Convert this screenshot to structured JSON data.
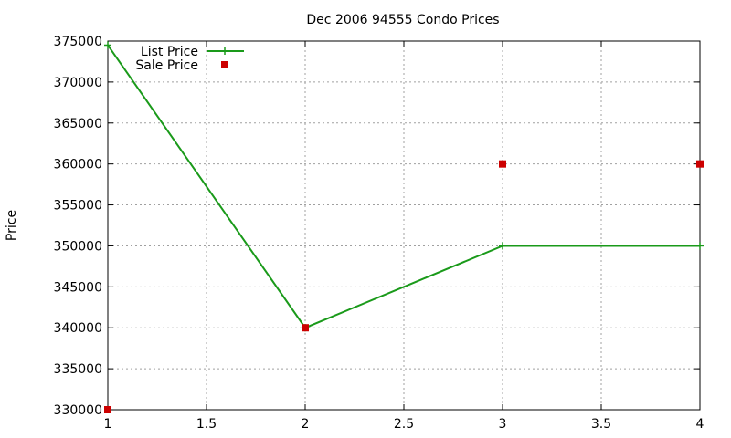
{
  "chart_data": {
    "type": "line",
    "title": "Dec 2006 94555 Condo Prices",
    "xlabel": "",
    "ylabel": "Price",
    "xlim": [
      1,
      4
    ],
    "ylim": [
      330000,
      375000
    ],
    "x_ticks": [
      "1",
      "1.5",
      "2",
      "2.5",
      "3",
      "3.5",
      "4"
    ],
    "x_tick_values": [
      1,
      1.5,
      2,
      2.5,
      3,
      3.5,
      4
    ],
    "y_ticks": [
      "330000",
      "335000",
      "340000",
      "345000",
      "350000",
      "355000",
      "360000",
      "365000",
      "370000",
      "375000"
    ],
    "y_tick_values": [
      330000,
      335000,
      340000,
      345000,
      350000,
      355000,
      360000,
      365000,
      370000,
      375000
    ],
    "grid": true,
    "legend_position": "top-left",
    "series": [
      {
        "name": "List Price",
        "style": "linespoints",
        "marker": "plus",
        "color": "#1a9a1a",
        "x": [
          1,
          2,
          3,
          4
        ],
        "y": [
          374500,
          340000,
          350000,
          350000
        ]
      },
      {
        "name": "Sale Price",
        "style": "points",
        "marker": "square",
        "color": "#cc0000",
        "x": [
          1,
          2,
          3,
          4
        ],
        "y": [
          330000,
          340000,
          360000,
          360000
        ]
      }
    ]
  }
}
